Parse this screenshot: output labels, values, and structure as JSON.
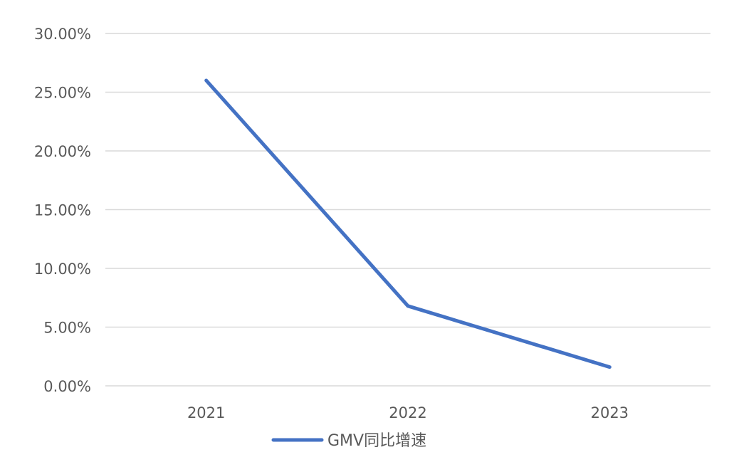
{
  "chart_data": {
    "type": "line",
    "categories": [
      "2021",
      "2022",
      "2023"
    ],
    "series": [
      {
        "name": "GMV同比增速",
        "values": [
          0.26,
          0.068,
          0.016
        ]
      }
    ],
    "ylim": [
      0,
      0.3
    ],
    "yticks": [
      "0.00%",
      "5.00%",
      "10.00%",
      "15.00%",
      "20.00%",
      "25.00%",
      "30.00%"
    ],
    "grid": true,
    "legend_position": "bottom",
    "line_color": "#4472C4"
  }
}
